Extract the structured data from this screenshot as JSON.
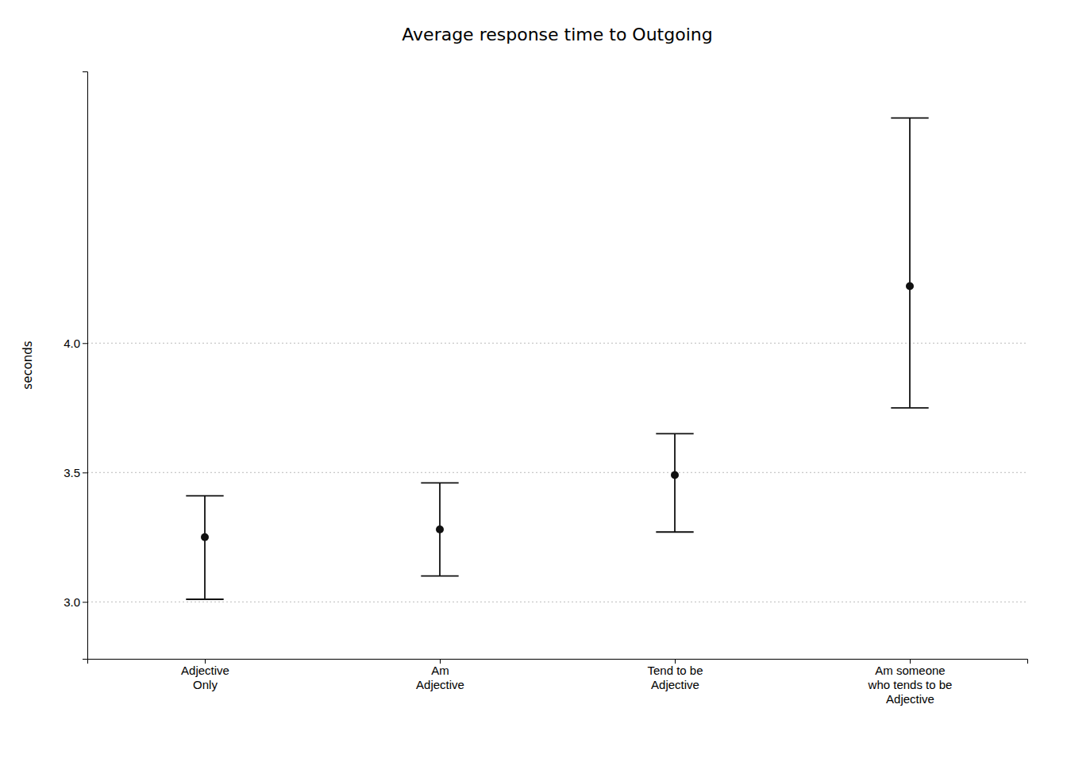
{
  "chart_data": {
    "type": "errorbar",
    "title": "Average response time to Outgoing",
    "ylabel": "seconds",
    "categories": [
      "Adjective\nOnly",
      "Am\nAdjective",
      "Tend to be\nAdjective",
      "Am someone\nwho tends to be\nAdjective"
    ],
    "values": [
      3.25,
      3.28,
      3.49,
      4.22
    ],
    "upper_errors": [
      0.16,
      0.18,
      0.16,
      0.65
    ],
    "lower_errors": [
      0.24,
      0.18,
      0.22,
      0.47
    ],
    "color": "#111111",
    "ylim": [
      2.78,
      5.05
    ],
    "yticks": [
      {
        "value": 3.0,
        "label": "3.0"
      },
      3.5,
      {
        "value": 4.0,
        "label": "4.0"
      }
    ],
    "grid": true
  }
}
